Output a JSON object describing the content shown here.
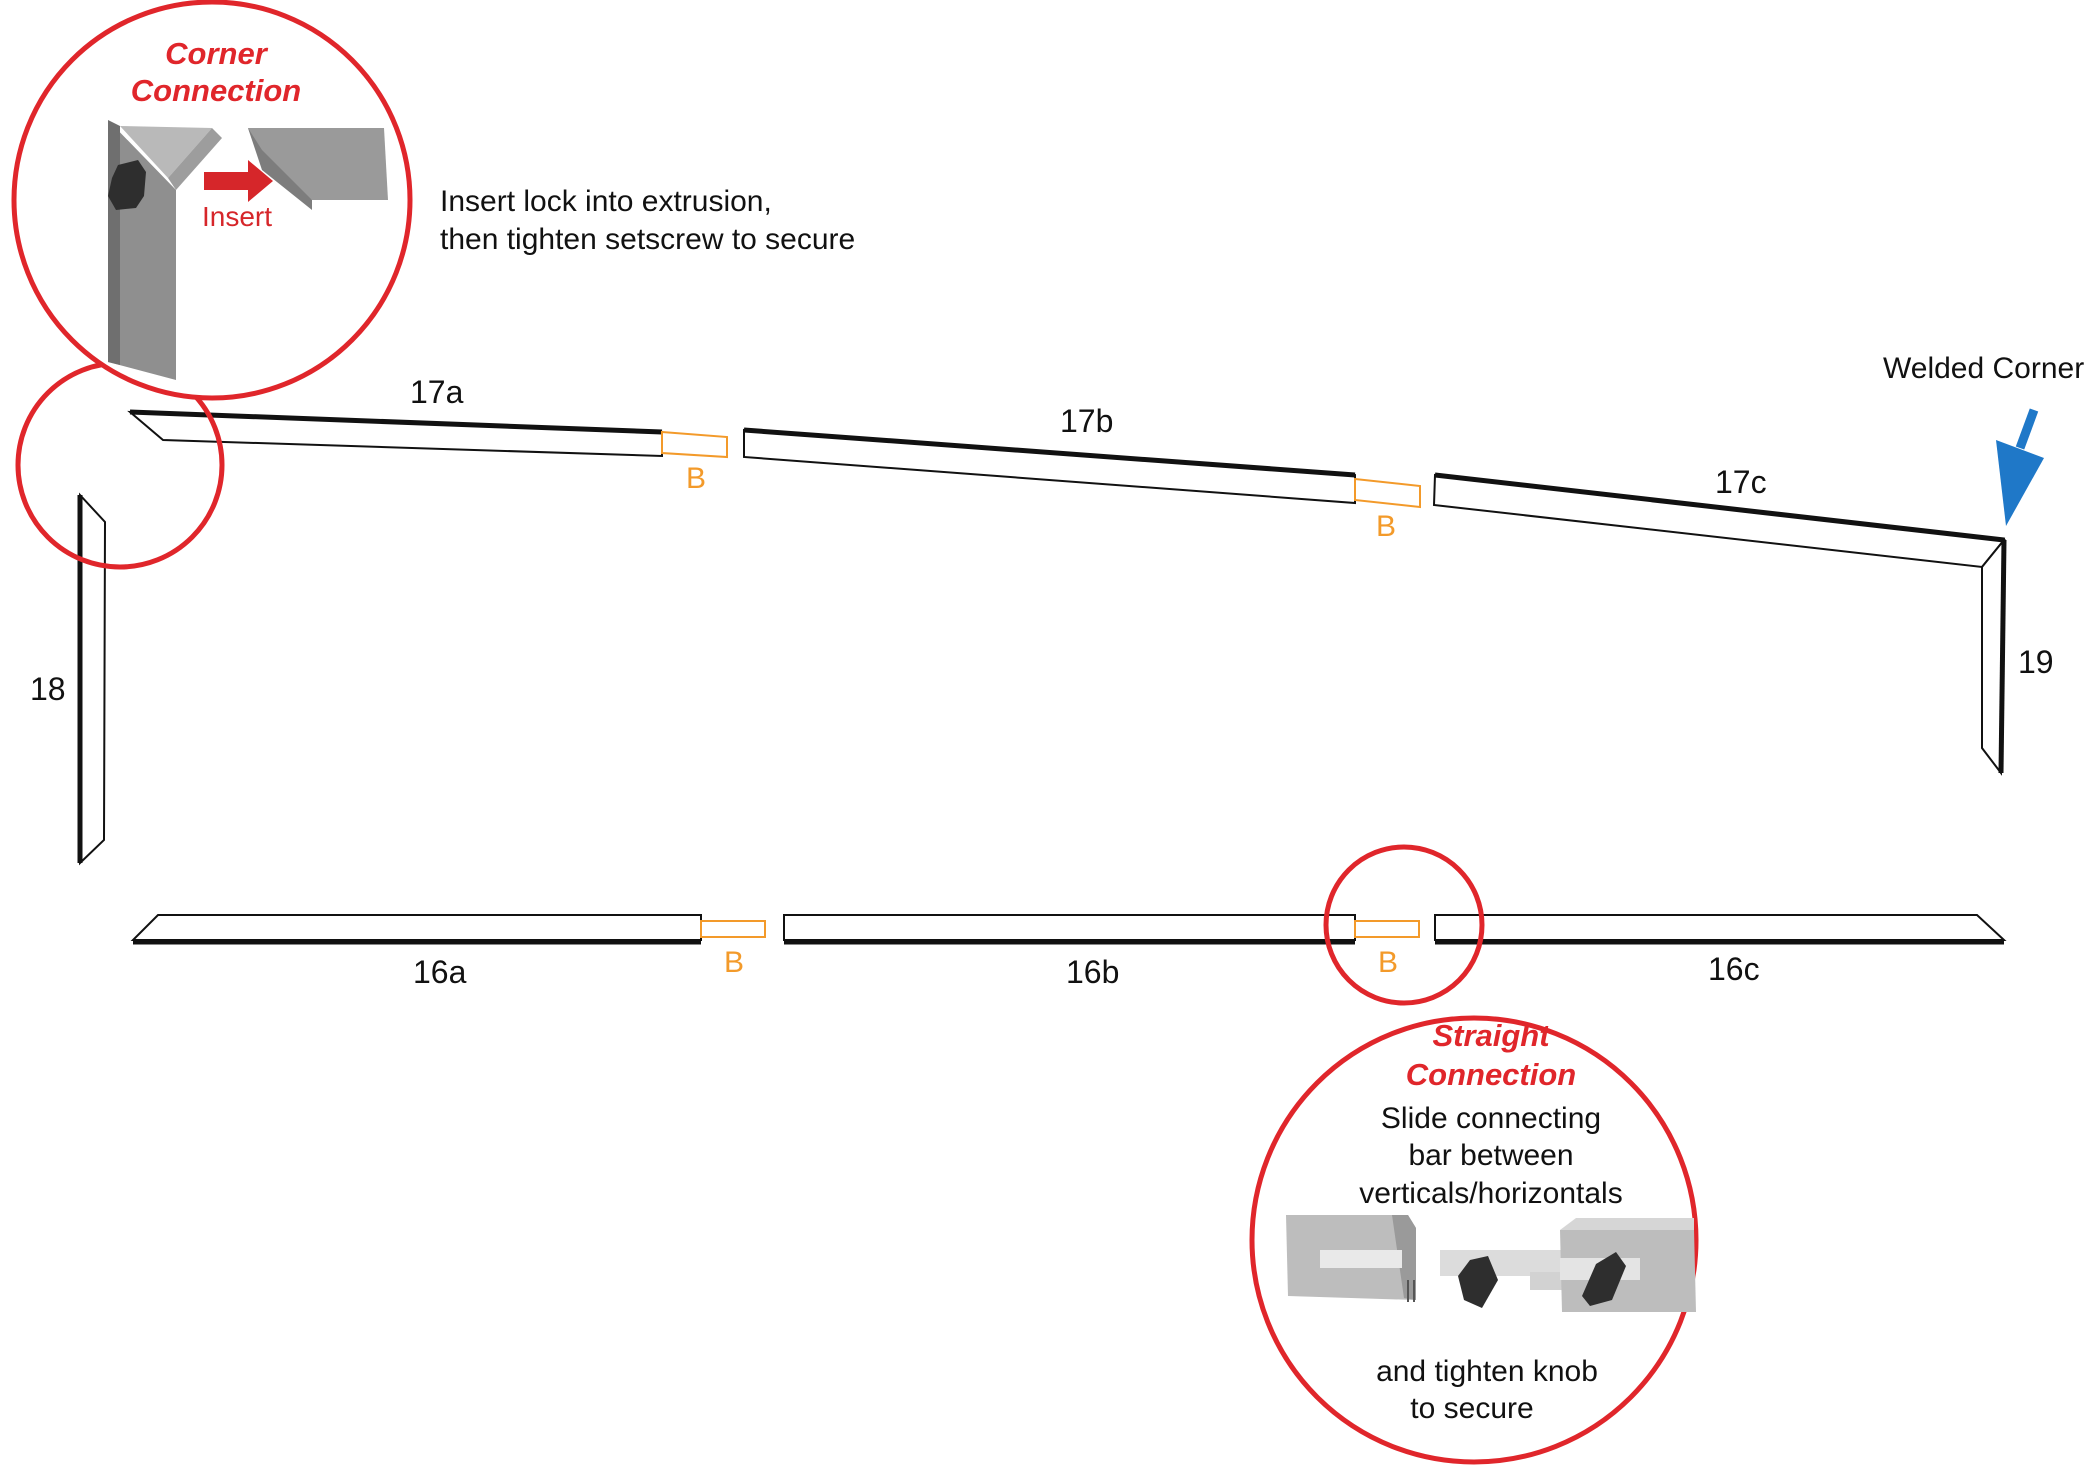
{
  "pieces": {
    "p17a": "17a",
    "p17b": "17b",
    "p17c": "17c",
    "p16a": "16a",
    "p16b": "16b",
    "p16c": "16c",
    "p18": "18",
    "p19": "19"
  },
  "connector_label": "B",
  "welded_corner": "Welded Corner",
  "corner_callout": {
    "title_line1": "Corner",
    "title_line2": "Connection",
    "insert_label": "Insert",
    "note_line1": "Insert lock into extrusion,",
    "note_line2": "then tighten setscrew to secure"
  },
  "straight_callout": {
    "title_line1": "Straight",
    "title_line2": "Connection",
    "text_line1": "Slide connecting",
    "text_line2": "bar between",
    "text_line3": "verticals/horizontals",
    "text_line4": "and tighten knob",
    "text_line5": "to secure"
  },
  "colors": {
    "callout_red": "#e0262b",
    "connector_orange": "#f39a2a",
    "arrow_blue": "#1f78c8",
    "extrusion_gray": "#9a9a9a"
  }
}
